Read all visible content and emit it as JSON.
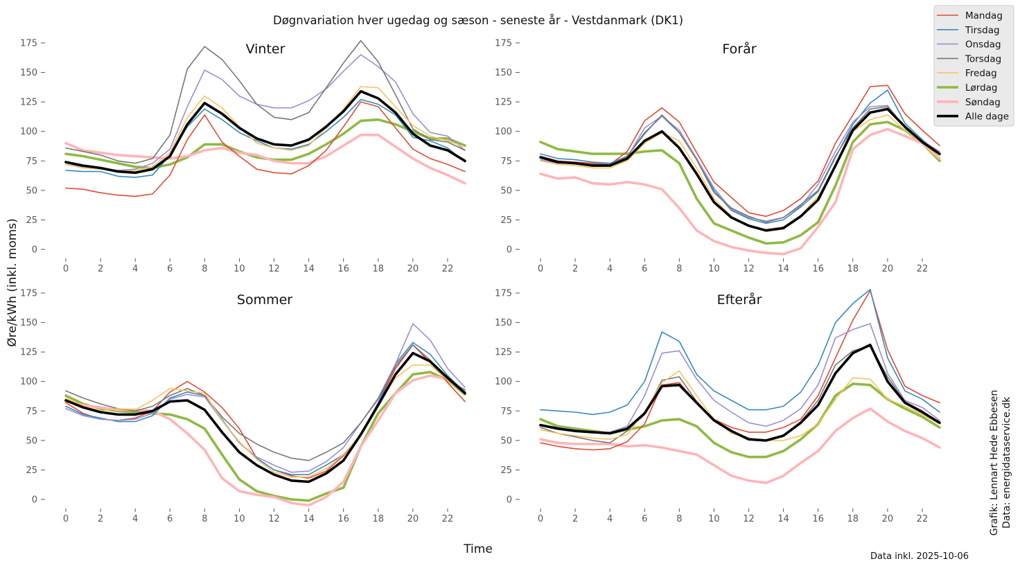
{
  "chart_title": "Døgnvariation hver ugedag og sæson - seneste år - Vestdanmark (DK1)",
  "ylabel": "Øre/kWh (inkl. moms)",
  "xlabel": "Time",
  "credit_line1": "Grafik: Lennart Hede Ebbesen",
  "credit_line2": "Data: energidataservice.dk",
  "data_note": "Data inkl. 2025-10-06",
  "styles": {
    "Mandag": {
      "color": "#e24a33",
      "width": "thin"
    },
    "Tirsdag": {
      "color": "#348abd",
      "width": "thin"
    },
    "Onsdag": {
      "color": "#988ed5",
      "width": "thin"
    },
    "Torsdag": {
      "color": "#777777",
      "width": "thin"
    },
    "Fredag": {
      "color": "#fbc15e",
      "width": "thin"
    },
    "Lørdag": {
      "color": "#8eba42",
      "width": "thick"
    },
    "Søndag": {
      "color": "#ffb5b8",
      "width": "thick"
    },
    "Alle dage": {
      "color": "#000000",
      "width": "thick"
    }
  },
  "chart_data": [
    {
      "type": "line",
      "title": "Vinter",
      "x": [
        0,
        1,
        2,
        3,
        4,
        5,
        6,
        7,
        8,
        9,
        10,
        11,
        12,
        13,
        14,
        15,
        16,
        17,
        18,
        19,
        20,
        21,
        22,
        23
      ],
      "xticks": [
        0,
        2,
        4,
        6,
        8,
        10,
        12,
        14,
        16,
        18,
        20,
        22
      ],
      "yticks": [
        0,
        25,
        50,
        75,
        100,
        125,
        150,
        175
      ],
      "ylim": [
        -10,
        185
      ],
      "xlim": [
        -0.6,
        23.6
      ],
      "series": [
        {
          "name": "Mandag",
          "values": [
            52,
            51,
            48,
            46,
            45,
            47,
            63,
            93,
            114,
            91,
            79,
            68,
            65,
            64,
            71,
            84,
            104,
            125,
            121,
            103,
            85,
            77,
            72,
            66
          ]
        },
        {
          "name": "Tirsdag",
          "values": [
            67,
            66,
            66,
            62,
            61,
            63,
            80,
            104,
            119,
            110,
            99,
            92,
            86,
            85,
            89,
            100,
            112,
            127,
            123,
            114,
            95,
            92,
            86,
            74
          ]
        },
        {
          "name": "Onsdag",
          "values": [
            72,
            70,
            69,
            67,
            68,
            73,
            85,
            121,
            152,
            144,
            130,
            123,
            120,
            120,
            126,
            136,
            151,
            165,
            155,
            142,
            115,
            99,
            96,
            84
          ]
        },
        {
          "name": "Torsdag",
          "values": [
            86,
            83,
            80,
            75,
            73,
            77,
            97,
            153,
            172,
            161,
            143,
            123,
            112,
            110,
            116,
            137,
            158,
            177,
            159,
            131,
            102,
            93,
            91,
            84
          ]
        },
        {
          "name": "Fredag",
          "values": [
            72,
            69,
            68,
            66,
            67,
            70,
            82,
            112,
            130,
            120,
            104,
            90,
            86,
            84,
            88,
            103,
            119,
            138,
            137,
            121,
            105,
            96,
            92,
            87
          ]
        },
        {
          "name": "Lørdag",
          "values": [
            81,
            79,
            76,
            73,
            70,
            69,
            72,
            78,
            89,
            89,
            83,
            78,
            76,
            76,
            81,
            89,
            98,
            109,
            110,
            106,
            100,
            94,
            94,
            88
          ]
        },
        {
          "name": "Søndag",
          "values": [
            90,
            84,
            82,
            80,
            79,
            78,
            77,
            79,
            84,
            86,
            82,
            80,
            75,
            73,
            73,
            79,
            88,
            97,
            97,
            87,
            77,
            69,
            63,
            56
          ]
        },
        {
          "name": "Alle dage",
          "values": [
            74,
            71,
            69,
            66,
            65,
            68,
            79,
            106,
            124,
            115,
            103,
            94,
            89,
            88,
            93,
            104,
            117,
            134,
            128,
            116,
            98,
            88,
            84,
            75
          ]
        }
      ]
    },
    {
      "type": "line",
      "title": "Forår",
      "x": [
        0,
        1,
        2,
        3,
        4,
        5,
        6,
        7,
        8,
        9,
        10,
        11,
        12,
        13,
        14,
        15,
        16,
        17,
        18,
        19,
        20,
        21,
        22,
        23
      ],
      "xticks": [
        0,
        2,
        4,
        6,
        8,
        10,
        12,
        14,
        16,
        18,
        20,
        22
      ],
      "yticks": [
        0,
        25,
        50,
        75,
        100,
        125,
        150,
        175
      ],
      "ylim": [
        -10,
        185
      ],
      "xlim": [
        -0.6,
        23.6
      ],
      "series": [
        {
          "name": "Mandag",
          "values": [
            79,
            75,
            74,
            73,
            72,
            83,
            109,
            120,
            108,
            82,
            57,
            44,
            31,
            28,
            33,
            43,
            58,
            90,
            114,
            138,
            139,
            115,
            101,
            88
          ]
        },
        {
          "name": "Tirsdag",
          "values": [
            81,
            77,
            76,
            74,
            73,
            79,
            99,
            113,
            99,
            77,
            50,
            33,
            26,
            22,
            25,
            36,
            49,
            78,
            106,
            124,
            135,
            107,
            93,
            81
          ]
        },
        {
          "name": "Onsdag",
          "values": [
            76,
            73,
            73,
            72,
            72,
            78,
            103,
            113,
            101,
            77,
            52,
            34,
            27,
            24,
            27,
            37,
            55,
            83,
            108,
            121,
            122,
            103,
            92,
            83
          ]
        },
        {
          "name": "Torsdag",
          "values": [
            79,
            74,
            73,
            72,
            72,
            79,
            98,
            114,
            99,
            76,
            48,
            35,
            28,
            23,
            27,
            38,
            50,
            79,
            103,
            119,
            121,
            104,
            90,
            80
          ]
        },
        {
          "name": "Fredag",
          "values": [
            75,
            72,
            71,
            69,
            69,
            75,
            90,
            99,
            92,
            69,
            43,
            28,
            20,
            17,
            19,
            29,
            45,
            70,
            100,
            110,
            114,
            101,
            90,
            78
          ]
        },
        {
          "name": "Lørdag",
          "values": [
            91,
            85,
            83,
            81,
            81,
            81,
            83,
            84,
            73,
            43,
            22,
            16,
            10,
            5,
            6,
            12,
            23,
            54,
            91,
            106,
            108,
            101,
            90,
            75
          ]
        },
        {
          "name": "Søndag",
          "values": [
            64,
            60,
            61,
            56,
            55,
            57,
            55,
            51,
            35,
            16,
            7,
            2,
            -1,
            -3,
            -4,
            1,
            19,
            40,
            85,
            97,
            102,
            96,
            90,
            77
          ]
        },
        {
          "name": "Alle dage",
          "values": [
            78,
            74,
            73,
            71,
            71,
            77,
            92,
            100,
            86,
            64,
            40,
            27,
            20,
            16,
            18,
            28,
            42,
            71,
            101,
            116,
            119,
            104,
            91,
            81
          ]
        }
      ]
    },
    {
      "type": "line",
      "title": "Sommer",
      "x": [
        0,
        1,
        2,
        3,
        4,
        5,
        6,
        7,
        8,
        9,
        10,
        11,
        12,
        13,
        14,
        15,
        16,
        17,
        18,
        19,
        20,
        21,
        22,
        23
      ],
      "xticks": [
        0,
        2,
        4,
        6,
        8,
        10,
        12,
        14,
        16,
        18,
        20,
        22
      ],
      "yticks": [
        0,
        25,
        50,
        75,
        100,
        125,
        150,
        175
      ],
      "ylim": [
        -10,
        185
      ],
      "xlim": [
        -0.6,
        23.6
      ],
      "series": [
        {
          "name": "Mandag",
          "values": [
            82,
            73,
            68,
            67,
            69,
            75,
            91,
            100,
            91,
            78,
            60,
            35,
            25,
            20,
            18,
            24,
            37,
            55,
            82,
            111,
            131,
            118,
            99,
            83
          ]
        },
        {
          "name": "Tirsdag",
          "values": [
            79,
            72,
            69,
            66,
            66,
            71,
            86,
            91,
            88,
            68,
            48,
            35,
            25,
            21,
            21,
            29,
            38,
            55,
            82,
            115,
            133,
            123,
            105,
            91
          ]
        },
        {
          "name": "Onsdag",
          "values": [
            77,
            71,
            68,
            67,
            68,
            73,
            85,
            89,
            87,
            67,
            48,
            36,
            29,
            23,
            24,
            32,
            44,
            65,
            86,
            115,
            149,
            135,
            111,
            95
          ]
        },
        {
          "name": "Torsdag",
          "values": [
            92,
            86,
            81,
            77,
            75,
            79,
            88,
            94,
            88,
            70,
            56,
            47,
            40,
            35,
            33,
            40,
            48,
            65,
            85,
            113,
            131,
            116,
            101,
            93
          ]
        },
        {
          "name": "Fredag",
          "values": [
            86,
            79,
            75,
            77,
            76,
            84,
            94,
            92,
            90,
            67,
            49,
            34,
            23,
            19,
            19,
            26,
            38,
            55,
            81,
            103,
            114,
            114,
            101,
            89
          ]
        },
        {
          "name": "Lørdag",
          "values": [
            88,
            81,
            77,
            75,
            74,
            73,
            72,
            68,
            60,
            38,
            17,
            7,
            3,
            0,
            -1,
            5,
            10,
            45,
            73,
            90,
            106,
            108,
            101,
            89
          ]
        },
        {
          "name": "Søndag",
          "values": [
            83,
            80,
            78,
            76,
            76,
            75,
            68,
            56,
            42,
            18,
            7,
            4,
            2,
            -3,
            -5,
            2,
            15,
            45,
            67,
            90,
            101,
            105,
            102,
            92
          ]
        },
        {
          "name": "Alle dage",
          "values": [
            84,
            78,
            74,
            72,
            72,
            75,
            83,
            84,
            76,
            57,
            40,
            29,
            21,
            16,
            15,
            22,
            33,
            55,
            80,
            106,
            124,
            117,
            103,
            90
          ]
        }
      ]
    },
    {
      "type": "line",
      "title": "Efterår",
      "x": [
        0,
        1,
        2,
        3,
        4,
        5,
        6,
        7,
        8,
        9,
        10,
        11,
        12,
        13,
        14,
        15,
        16,
        17,
        18,
        19,
        20,
        21,
        22,
        23
      ],
      "xticks": [
        0,
        2,
        4,
        6,
        8,
        10,
        12,
        14,
        16,
        18,
        20,
        22
      ],
      "yticks": [
        0,
        25,
        50,
        75,
        100,
        125,
        150,
        175
      ],
      "ylim": [
        -10,
        185
      ],
      "xlim": [
        -0.6,
        23.6
      ],
      "series": [
        {
          "name": "Mandag",
          "values": [
            48,
            45,
            43,
            42,
            43,
            49,
            64,
            97,
            99,
            82,
            68,
            61,
            57,
            57,
            61,
            68,
            88,
            120,
            152,
            177,
            127,
            96,
            88,
            82
          ]
        },
        {
          "name": "Tirsdag",
          "values": [
            76,
            75,
            74,
            72,
            74,
            80,
            100,
            142,
            134,
            106,
            92,
            84,
            76,
            76,
            79,
            91,
            114,
            150,
            166,
            178,
            120,
            92,
            85,
            74
          ]
        },
        {
          "name": "Onsdag",
          "values": [
            63,
            61,
            59,
            57,
            57,
            62,
            88,
            124,
            126,
            102,
            84,
            74,
            65,
            62,
            67,
            77,
            97,
            137,
            144,
            149,
            107,
            84,
            78,
            67
          ]
        },
        {
          "name": "Torsdag",
          "values": [
            61,
            56,
            53,
            50,
            48,
            58,
            72,
            101,
            104,
            83,
            67,
            58,
            52,
            50,
            54,
            66,
            84,
            114,
            126,
            130,
            104,
            83,
            75,
            65
          ]
        },
        {
          "name": "Fredag",
          "values": [
            59,
            56,
            54,
            52,
            51,
            55,
            74,
            99,
            109,
            88,
            68,
            56,
            52,
            50,
            50,
            54,
            64,
            85,
            103,
            102,
            85,
            79,
            72,
            64
          ]
        },
        {
          "name": "Lørdag",
          "values": [
            68,
            62,
            60,
            58,
            56,
            59,
            62,
            67,
            68,
            62,
            48,
            40,
            36,
            36,
            41,
            51,
            64,
            88,
            98,
            97,
            85,
            77,
            70,
            61
          ]
        },
        {
          "name": "Søndag",
          "values": [
            51,
            48,
            47,
            47,
            47,
            45,
            46,
            44,
            41,
            38,
            29,
            20,
            16,
            14,
            20,
            31,
            41,
            58,
            69,
            77,
            66,
            58,
            52,
            44
          ]
        },
        {
          "name": "Alle dage",
          "values": [
            63,
            60,
            58,
            57,
            56,
            60,
            73,
            96,
            97,
            82,
            67,
            58,
            51,
            50,
            54,
            65,
            80,
            107,
            124,
            131,
            100,
            82,
            74,
            65
          ]
        }
      ]
    }
  ]
}
